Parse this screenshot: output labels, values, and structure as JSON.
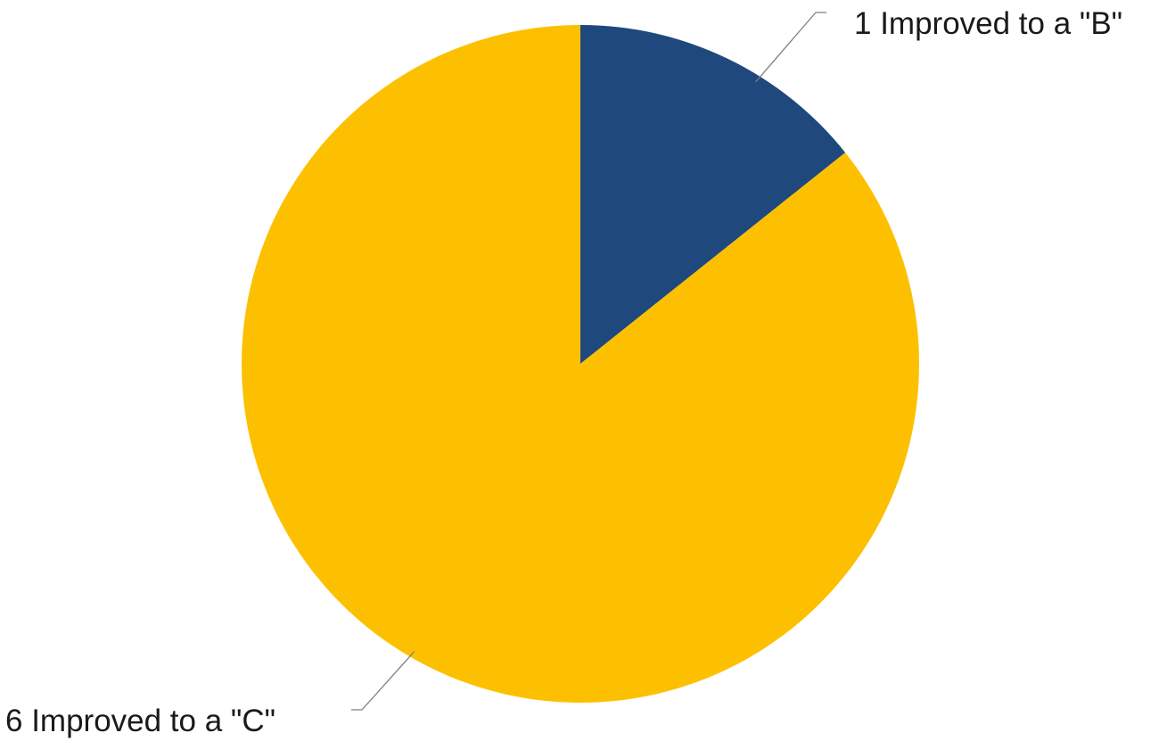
{
  "chart_data": {
    "type": "pie",
    "title": "",
    "start_angle_deg": 0,
    "direction": "clockwise",
    "slices": [
      {
        "label": "1 Improved to a \"B\"",
        "value": 1,
        "color": "#1f497d"
      },
      {
        "label": "6 Improved to a \"C\"",
        "value": 6,
        "color": "#fdc000"
      }
    ],
    "legend": "none",
    "data_labels": "outside with leader lines"
  }
}
